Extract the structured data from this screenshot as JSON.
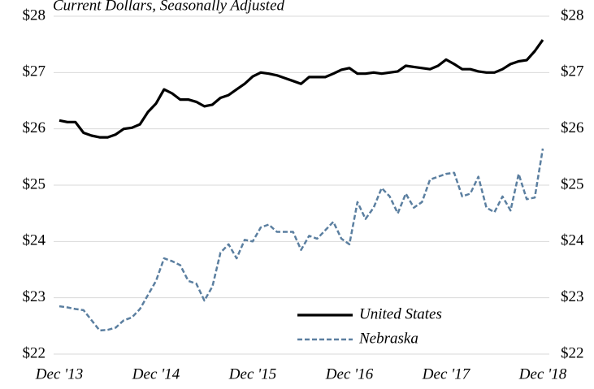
{
  "chart_data": {
    "type": "line",
    "subtitle": "Current Dollars, Seasonally Adjusted",
    "categories": [
      "Dec '13",
      null,
      null,
      null,
      null,
      null,
      null,
      null,
      null,
      null,
      null,
      null,
      "Dec '14",
      null,
      null,
      null,
      null,
      null,
      null,
      null,
      null,
      null,
      null,
      null,
      "Dec '15",
      null,
      null,
      null,
      null,
      null,
      null,
      null,
      null,
      null,
      null,
      null,
      "Dec '16",
      null,
      null,
      null,
      null,
      null,
      null,
      null,
      null,
      null,
      null,
      null,
      "Dec '17",
      null,
      null,
      null,
      null,
      null,
      null,
      null,
      null,
      null,
      null,
      null,
      "Dec '18"
    ],
    "series": [
      {
        "name": "United States",
        "color": "#000000",
        "dashed": false,
        "values": [
          26.15,
          26.12,
          26.12,
          25.93,
          25.88,
          25.85,
          25.85,
          25.9,
          26.0,
          26.02,
          26.08,
          26.3,
          26.45,
          26.7,
          26.63,
          26.52,
          26.52,
          26.48,
          26.4,
          26.43,
          26.55,
          26.6,
          26.7,
          26.8,
          26.93,
          27.0,
          26.98,
          26.95,
          26.9,
          26.85,
          26.8,
          26.92,
          26.92,
          26.92,
          26.98,
          27.05,
          27.08,
          26.98,
          26.98,
          27.0,
          26.98,
          27.0,
          27.02,
          27.12,
          27.1,
          27.08,
          27.06,
          27.12,
          27.23,
          27.15,
          27.06,
          27.06,
          27.02,
          27.0,
          27.0,
          27.06,
          27.15,
          27.2,
          27.22,
          27.38,
          27.58
        ]
      },
      {
        "name": "Nebraska",
        "color": "#5b7fa0",
        "dashed": true,
        "values": [
          22.85,
          22.83,
          22.8,
          22.78,
          22.6,
          22.42,
          22.43,
          22.47,
          22.6,
          22.65,
          22.8,
          23.05,
          23.3,
          23.7,
          23.65,
          23.58,
          23.3,
          23.25,
          22.95,
          23.2,
          23.8,
          23.95,
          23.7,
          24.03,
          24.0,
          24.25,
          24.3,
          24.17,
          24.17,
          24.17,
          23.85,
          24.1,
          24.05,
          24.2,
          24.35,
          24.05,
          23.95,
          24.7,
          24.4,
          24.6,
          24.95,
          24.8,
          24.5,
          24.85,
          24.6,
          24.7,
          25.1,
          25.15,
          25.2,
          25.22,
          24.8,
          24.85,
          25.15,
          24.6,
          24.52,
          24.8,
          24.55,
          25.2,
          24.75,
          24.78,
          25.65
        ]
      }
    ],
    "ylim": [
      22,
      28
    ],
    "yticks": [
      {
        "value": 22,
        "label": "$22"
      },
      {
        "value": 23,
        "label": "$23"
      },
      {
        "value": 24,
        "label": "$24"
      },
      {
        "value": 25,
        "label": "$25"
      },
      {
        "value": 26,
        "label": "$26"
      },
      {
        "value": 27,
        "label": "$27"
      },
      {
        "value": 28,
        "label": "$28"
      }
    ],
    "y2lim": [
      22,
      28
    ],
    "y2ticks": [
      {
        "value": 22,
        "label": "$22"
      },
      {
        "value": 23,
        "label": "$23"
      },
      {
        "value": 24,
        "label": "$24"
      },
      {
        "value": 25,
        "label": "$25"
      },
      {
        "value": 26,
        "label": "$26"
      },
      {
        "value": 27,
        "label": "$27"
      },
      {
        "value": 28,
        "label": "$28"
      }
    ],
    "grid": true,
    "legend": "bottom-center"
  }
}
